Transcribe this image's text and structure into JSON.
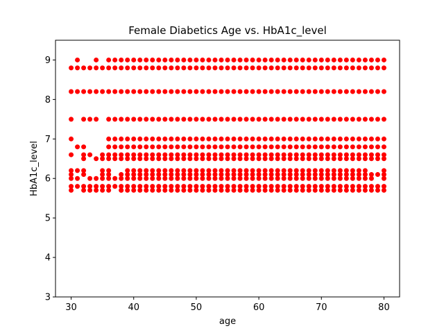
{
  "chart_data": {
    "type": "scatter",
    "title": "Female Diabetics Age vs. HbA1c_level",
    "xlabel": "age",
    "ylabel": "HbA1c_level",
    "xlim": [
      27.5,
      82.5
    ],
    "ylim": [
      3,
      9.5
    ],
    "xticks": [
      30,
      40,
      50,
      60,
      70,
      80
    ],
    "yticks": [
      3,
      4,
      5,
      6,
      7,
      8,
      9
    ],
    "grid": false,
    "marker_color": "#ff0000",
    "series": [
      {
        "x_range": [
          30,
          80
        ],
        "y_levels": [
          5.7,
          5.8,
          6.0,
          6.1,
          6.2,
          6.5,
          6.6,
          6.8,
          7.0,
          7.5,
          8.2,
          8.8,
          9.0
        ],
        "missing_points": [
          [
            30,
            9.0
          ],
          [
            32,
            9.0
          ],
          [
            33,
            9.0
          ],
          [
            35,
            9.0
          ],
          [
            31,
            7.5
          ],
          [
            35,
            7.5
          ],
          [
            31,
            7.0
          ],
          [
            32,
            7.0
          ],
          [
            33,
            7.0
          ],
          [
            34,
            7.0
          ],
          [
            35,
            7.0
          ],
          [
            30,
            6.8
          ],
          [
            33,
            6.8
          ],
          [
            34,
            6.8
          ],
          [
            35,
            6.8
          ],
          [
            31,
            6.6
          ],
          [
            34,
            6.6
          ],
          [
            30,
            6.5
          ],
          [
            31,
            6.5
          ],
          [
            33,
            6.5
          ],
          [
            33,
            6.2
          ],
          [
            34,
            6.2
          ],
          [
            37,
            6.2
          ],
          [
            38,
            6.2
          ],
          [
            78,
            6.2
          ],
          [
            79,
            6.2
          ],
          [
            31,
            6.1
          ],
          [
            33,
            6.1
          ],
          [
            34,
            6.1
          ],
          [
            37,
            6.1
          ],
          [
            32,
            6.0
          ],
          [
            79,
            6.0
          ],
          [
            31,
            5.7
          ],
          [
            37,
            5.7
          ]
        ],
        "extra_points": [
          [
            38,
            5.7
          ]
        ]
      }
    ]
  }
}
